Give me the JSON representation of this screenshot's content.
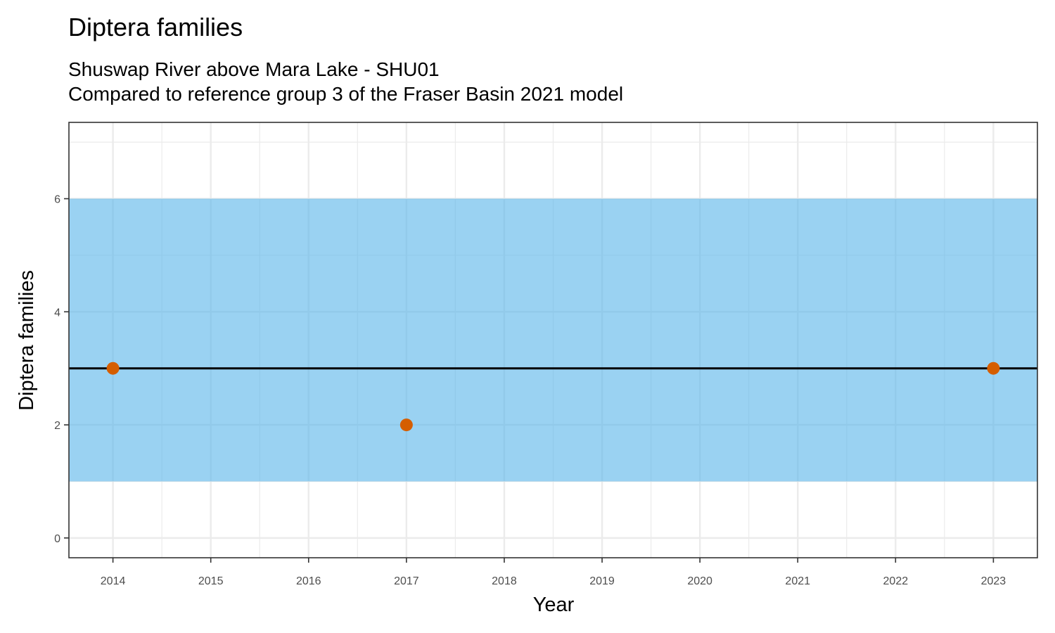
{
  "chart_data": {
    "type": "scatter",
    "title": "Diptera families",
    "subtitle_lines": [
      "Shuswap River above Mara Lake - SHU01",
      "Compared to reference group 3 of the Fraser Basin 2021 model"
    ],
    "xlabel": "Year",
    "ylabel": "Diptera families",
    "x_ticks": [
      "2014",
      "2015",
      "2016",
      "2017",
      "2018",
      "2019",
      "2020",
      "2021",
      "2022",
      "2023"
    ],
    "y_ticks": [
      "0",
      "2",
      "4",
      "6"
    ],
    "xlim": [
      2013.55,
      2023.45
    ],
    "ylim": [
      -0.35,
      7.35
    ],
    "grid": true,
    "reference_band": {
      "ymin": 1,
      "ymax": 6,
      "color": "#56b4e9"
    },
    "reference_line": {
      "y": 3,
      "color": "#000000"
    },
    "series": [
      {
        "x": [
          2014,
          2017,
          2023
        ],
        "y": [
          3,
          2,
          3
        ],
        "color": "#d55e00"
      }
    ]
  }
}
